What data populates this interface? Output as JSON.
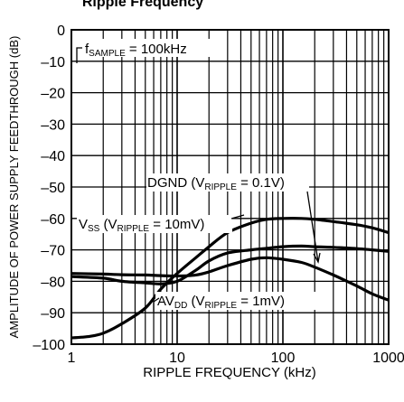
{
  "chart_data": {
    "type": "line",
    "title": "Ripple Frequency",
    "xlabel": "RIPPLE FREQUENCY (kHz)",
    "ylabel": "AMPLITUDE OF POWER SUPPLY FEEDTHROUGH (dB)",
    "x_scale": "log",
    "xlim": [
      1,
      1000
    ],
    "ylim": [
      -100,
      0
    ],
    "grid": true,
    "x_ticks": [
      {
        "value": 1,
        "label": "1"
      },
      {
        "value": 10,
        "label": "10"
      },
      {
        "value": 100,
        "label": "100"
      },
      {
        "value": 1000,
        "label": "1000"
      }
    ],
    "y_ticks": [
      {
        "value": 0,
        "label": "0"
      },
      {
        "value": -10,
        "label": "–10"
      },
      {
        "value": -20,
        "label": "–20"
      },
      {
        "value": -30,
        "label": "–30"
      },
      {
        "value": -40,
        "label": "–40"
      },
      {
        "value": -50,
        "label": "–50"
      },
      {
        "value": -60,
        "label": "–60"
      },
      {
        "value": -70,
        "label": "–70"
      },
      {
        "value": -80,
        "label": "–80"
      },
      {
        "value": -90,
        "label": "–90"
      },
      {
        "value": -100,
        "label": "–100"
      }
    ],
    "series": [
      {
        "name": "DGND",
        "x": [
          1,
          2,
          3,
          5,
          7,
          10,
          15,
          20,
          30,
          50,
          70,
          100,
          150,
          200,
          300,
          500,
          700,
          1000
        ],
        "y": [
          -77.5,
          -77.7,
          -77.9,
          -78.0,
          -78.2,
          -78.3,
          -78.0,
          -77.0,
          -75.0,
          -73.0,
          -72.5,
          -73.0,
          -74.0,
          -75.5,
          -78.0,
          -81.5,
          -84.0,
          -86.0
        ]
      },
      {
        "name": "VSS",
        "x": [
          1,
          2,
          3,
          5,
          7,
          10,
          15,
          20,
          30,
          50,
          70,
          100,
          150,
          200,
          300,
          500,
          700,
          1000
        ],
        "y": [
          -78.5,
          -79.0,
          -80.0,
          -80.5,
          -80.8,
          -80.0,
          -76.5,
          -73.5,
          -71.0,
          -70.0,
          -69.5,
          -69.0,
          -68.8,
          -69.0,
          -69.2,
          -69.6,
          -70.0,
          -70.5
        ]
      },
      {
        "name": "AVDD",
        "x": [
          1,
          1.5,
          2,
          3,
          5,
          7,
          10,
          15,
          20,
          30,
          50,
          70,
          100,
          150,
          200,
          300,
          500,
          700,
          1000
        ],
        "y": [
          -98.0,
          -97.5,
          -96.5,
          -93.5,
          -88.5,
          -82.5,
          -77.5,
          -72.5,
          -69.0,
          -64.5,
          -61.5,
          -60.3,
          -60.0,
          -60.0,
          -60.3,
          -61.0,
          -62.0,
          -63.0,
          -64.5
        ]
      }
    ],
    "annotations": [
      {
        "text": "f",
        "sub": "SAMPLE",
        "rest": " = 100kHz"
      },
      {
        "text": "DGND (V",
        "sub": "RIPPLE",
        "rest": " = 0.1V)"
      },
      {
        "text": "V",
        "sub2": "SS",
        "mid": " (V",
        "sub": "RIPPLE",
        "rest": " = 10mV)"
      },
      {
        "text": "AV",
        "sub2": "DD",
        "mid": " (V",
        "sub": "RIPPLE",
        "rest": " = 1mV)"
      }
    ]
  }
}
